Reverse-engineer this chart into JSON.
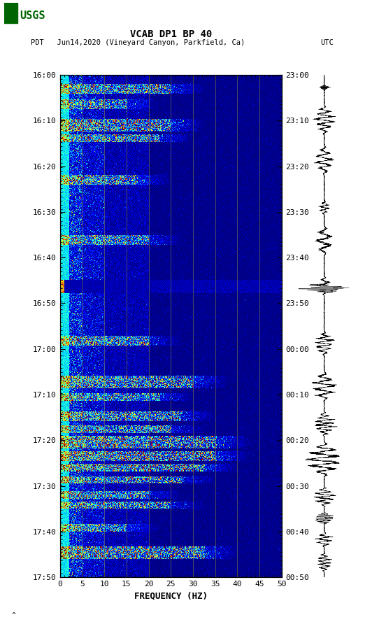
{
  "title_line1": "VCAB DP1 BP 40",
  "title_line2_left": "PDT   Jun14,2020 (Vineyard Canyon, Parkfield, Ca)",
  "title_line2_right": "UTC",
  "xlabel": "FREQUENCY (HZ)",
  "freq_min": 0,
  "freq_max": 50,
  "freq_ticks": [
    0,
    5,
    10,
    15,
    20,
    25,
    30,
    35,
    40,
    45,
    50
  ],
  "time_labels_left": [
    "16:00",
    "16:10",
    "16:20",
    "16:30",
    "16:40",
    "16:50",
    "17:00",
    "17:10",
    "17:20",
    "17:30",
    "17:40",
    "17:50"
  ],
  "time_labels_right": [
    "23:00",
    "23:10",
    "23:20",
    "23:30",
    "23:40",
    "23:50",
    "00:00",
    "00:10",
    "00:20",
    "00:30",
    "00:40",
    "00:50"
  ],
  "n_time_bins": 660,
  "n_freq_bins": 500,
  "background_color": "#ffffff",
  "colormap": "jet",
  "grid_color": "#808040",
  "fig_width": 5.52,
  "fig_height": 8.92,
  "logo_color": "#006400",
  "watermark": "^"
}
